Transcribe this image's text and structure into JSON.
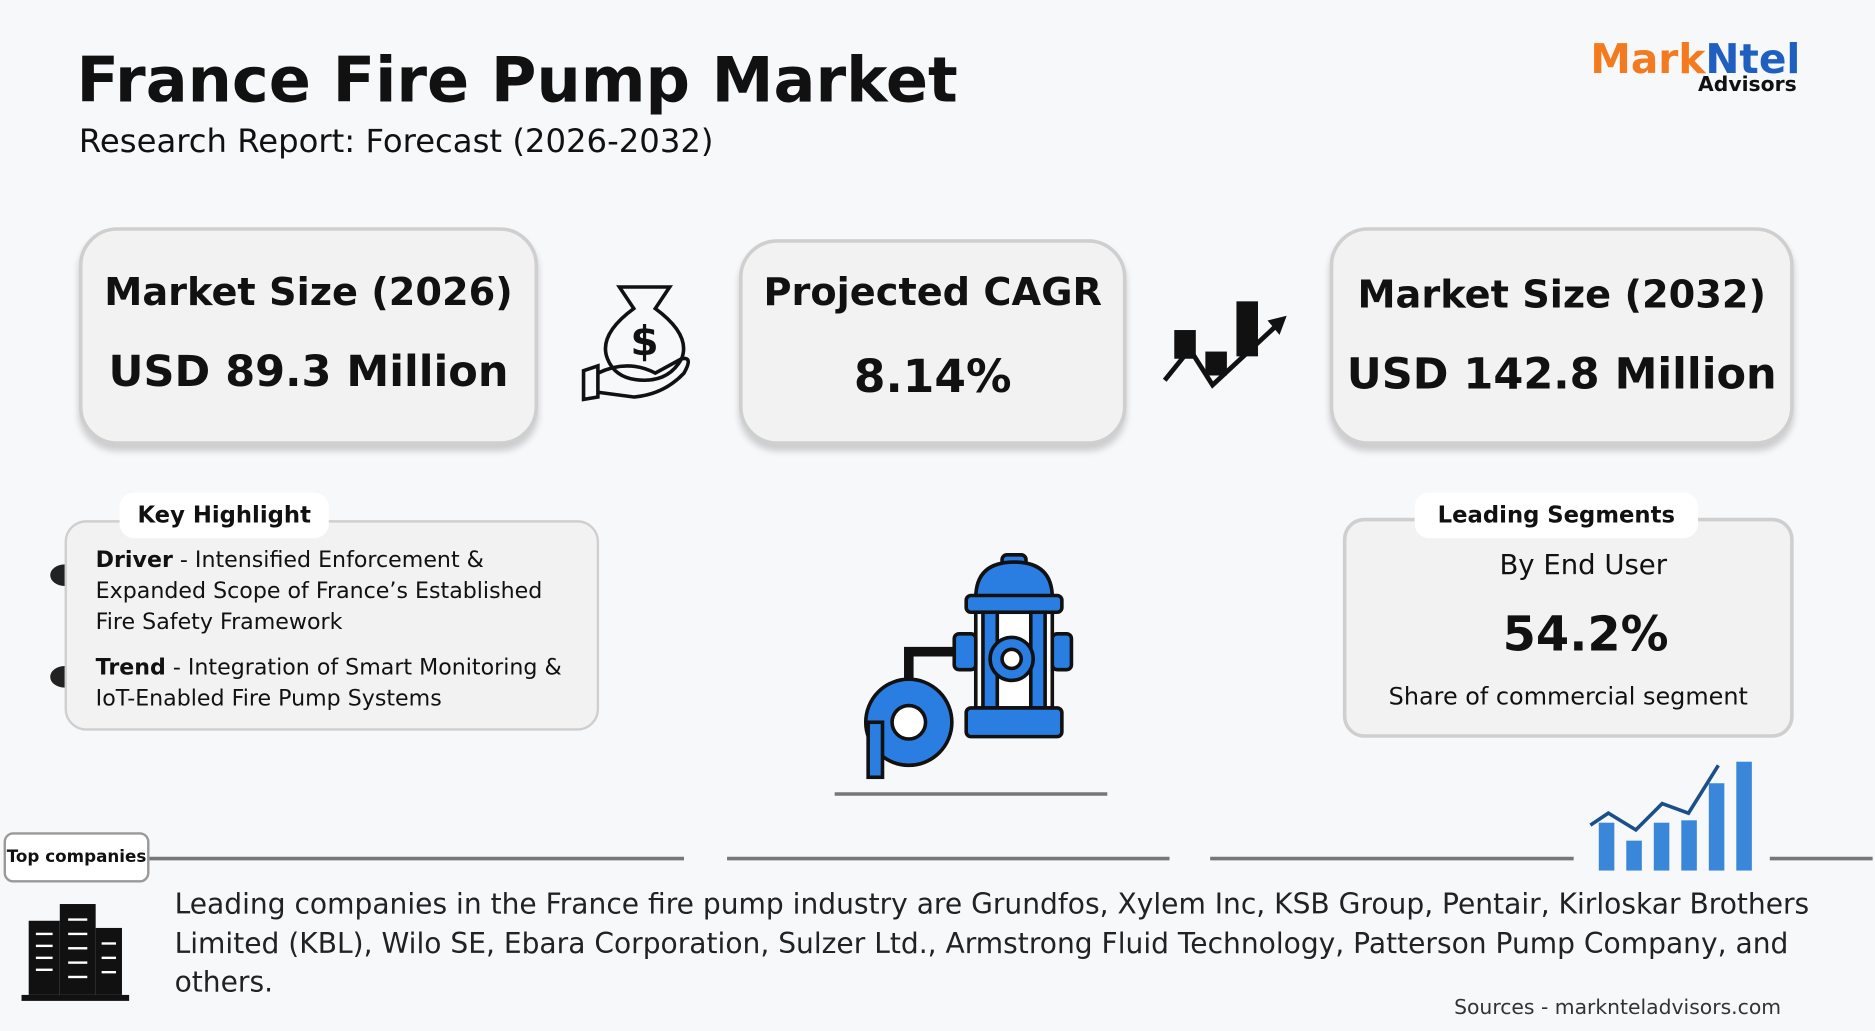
{
  "header": {
    "title": "France Fire Pump Market",
    "subtitle": "Research Report: Forecast (2026-2032)"
  },
  "logo": {
    "part1": "Mark",
    "part2": "Ntel",
    "tagline": "Advisors"
  },
  "cards": [
    {
      "label": "Market Size (2026)",
      "value": "USD 89.3 Million"
    },
    {
      "label": "Projected CAGR",
      "value": "8.14%"
    },
    {
      "label": "Market Size (2032)",
      "value": "USD 142.8 Million"
    }
  ],
  "key_highlight": {
    "title": "Key Highlight",
    "items": [
      {
        "label": "Driver",
        "text": "- Intensified Enforcement & Expanded Scope of France’s Established Fire Safety Framework"
      },
      {
        "label": "Trend",
        "text": "- Integration of Smart Monitoring & IoT-Enabled Fire Pump Systems"
      }
    ]
  },
  "leading_segments": {
    "title": "Leading Segments",
    "category": "By End User",
    "value": "54.2%",
    "description": "Share of commercial segment"
  },
  "top_companies": {
    "title": "Top companies",
    "text": "Leading companies in the France fire pump industry are Grundfos, Xylem Inc, KSB Group, Pentair, Kirloskar Brothers Limited (KBL), Wilo SE, Ebara Corporation, Sulzer Ltd., Armstrong Fluid Technology, Patterson Pump Company, and others."
  },
  "source": "Sources - marknteladvisors.com"
}
